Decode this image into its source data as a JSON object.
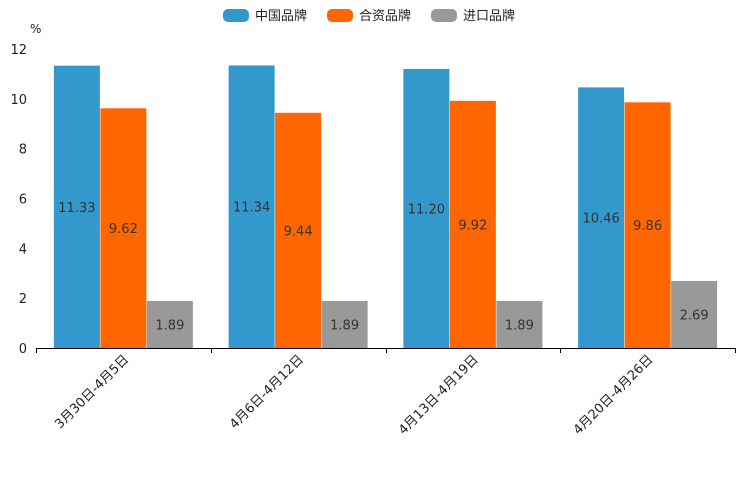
{
  "chart_data": {
    "type": "bar",
    "title": "",
    "ylabel": "%",
    "xlabel": "",
    "ylim": [
      0,
      12
    ],
    "yticks": [
      0,
      2,
      4,
      6,
      8,
      10,
      12
    ],
    "grid": false,
    "legend_position": "top-center",
    "categories": [
      "3月30日-4月5日",
      "4月6日-4月12日",
      "4月13日-4月19日",
      "4月20日-4月26日"
    ],
    "series": [
      {
        "name": "中国品牌",
        "color": "#3399CC",
        "values": [
          11.33,
          11.34,
          11.2,
          10.46
        ],
        "labels": [
          "11.33",
          "11.34",
          "11.20",
          "10.46"
        ]
      },
      {
        "name": "合资品牌",
        "color": "#FF6600",
        "values": [
          9.62,
          9.44,
          9.92,
          9.86
        ],
        "labels": [
          "9.62",
          "9.44",
          "9.92",
          "9.86"
        ]
      },
      {
        "name": "进口品牌",
        "color": "#999999",
        "values": [
          1.89,
          1.89,
          1.89,
          2.69
        ],
        "labels": [
          "1.89",
          "1.89",
          "1.89",
          "2.69"
        ]
      }
    ]
  }
}
